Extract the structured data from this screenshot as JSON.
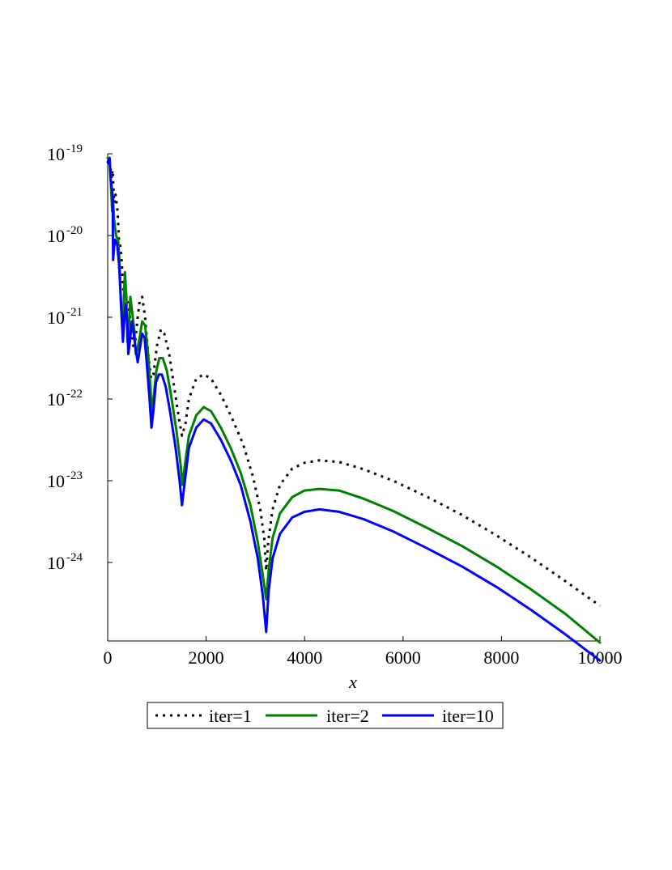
{
  "chart_data": {
    "type": "line",
    "title": "",
    "xlabel": "x",
    "ylabel": "",
    "xlim": [
      0,
      10000
    ],
    "ylim_log10": [
      -25.0,
      -19.0
    ],
    "yscale": "log",
    "grid": false,
    "legend_placement": "bottom",
    "x_ticks": [
      {
        "value": 0,
        "label": "0"
      },
      {
        "value": 2000,
        "label": "2000"
      },
      {
        "value": 4000,
        "label": "4000"
      },
      {
        "value": 6000,
        "label": "6000"
      },
      {
        "value": 8000,
        "label": "8000"
      },
      {
        "value": 10000,
        "label": "10000"
      }
    ],
    "y_ticks": [
      {
        "log10": -19,
        "base": "10",
        "exp": "-19"
      },
      {
        "log10": -20,
        "base": "10",
        "exp": "-20"
      },
      {
        "log10": -21,
        "base": "10",
        "exp": "-21"
      },
      {
        "log10": -22,
        "base": "10",
        "exp": "-22"
      },
      {
        "log10": -23,
        "base": "10",
        "exp": "-23"
      },
      {
        "log10": -24,
        "base": "10",
        "exp": "-24"
      }
    ],
    "series": [
      {
        "name": "iter=1",
        "color": "#000000",
        "style": "dotted",
        "points": [
          [
            0,
            -19.1
          ],
          [
            50,
            -19.15
          ],
          [
            80,
            -19.3
          ],
          [
            100,
            -19.2
          ],
          [
            130,
            -19.6
          ],
          [
            160,
            -19.5
          ],
          [
            200,
            -19.7
          ],
          [
            230,
            -20.05
          ],
          [
            260,
            -20.15
          ],
          [
            290,
            -20.35
          ],
          [
            310,
            -20.6
          ],
          [
            360,
            -20.85
          ],
          [
            400,
            -20.8
          ],
          [
            440,
            -20.95
          ],
          [
            480,
            -21.1
          ],
          [
            520,
            -21.35
          ],
          [
            560,
            -21.3
          ],
          [
            600,
            -21.05
          ],
          [
            650,
            -20.8
          ],
          [
            700,
            -20.75
          ],
          [
            760,
            -21.0
          ],
          [
            830,
            -21.5
          ],
          [
            880,
            -21.75
          ],
          [
            930,
            -21.7
          ],
          [
            1000,
            -21.35
          ],
          [
            1080,
            -21.15
          ],
          [
            1150,
            -21.2
          ],
          [
            1250,
            -21.45
          ],
          [
            1350,
            -21.85
          ],
          [
            1450,
            -22.25
          ],
          [
            1510,
            -22.45
          ],
          [
            1580,
            -22.3
          ],
          [
            1650,
            -22.0
          ],
          [
            1800,
            -21.75
          ],
          [
            1950,
            -21.7
          ],
          [
            2100,
            -21.75
          ],
          [
            2300,
            -21.95
          ],
          [
            2500,
            -22.2
          ],
          [
            2750,
            -22.55
          ],
          [
            2950,
            -22.95
          ],
          [
            3100,
            -23.35
          ],
          [
            3180,
            -23.7
          ],
          [
            3220,
            -24.1
          ],
          [
            3260,
            -23.75
          ],
          [
            3350,
            -23.35
          ],
          [
            3500,
            -23.05
          ],
          [
            3750,
            -22.85
          ],
          [
            4000,
            -22.78
          ],
          [
            4300,
            -22.75
          ],
          [
            4700,
            -22.77
          ],
          [
            5200,
            -22.86
          ],
          [
            5800,
            -23.0
          ],
          [
            6500,
            -23.2
          ],
          [
            7200,
            -23.42
          ],
          [
            7900,
            -23.67
          ],
          [
            8600,
            -23.94
          ],
          [
            9300,
            -24.23
          ],
          [
            10000,
            -24.53
          ]
        ]
      },
      {
        "name": "iter=2",
        "color": "#008000",
        "style": "solid",
        "points": [
          [
            0,
            -19.05
          ],
          [
            40,
            -19.1
          ],
          [
            60,
            -19.3
          ],
          [
            90,
            -19.7
          ],
          [
            110,
            -19.55
          ],
          [
            130,
            -19.8
          ],
          [
            170,
            -20.0
          ],
          [
            210,
            -20.05
          ],
          [
            240,
            -20.3
          ],
          [
            270,
            -20.85
          ],
          [
            300,
            -21.15
          ],
          [
            320,
            -20.9
          ],
          [
            350,
            -20.45
          ],
          [
            380,
            -20.75
          ],
          [
            400,
            -21.3
          ],
          [
            430,
            -21.15
          ],
          [
            460,
            -20.75
          ],
          [
            500,
            -20.95
          ],
          [
            540,
            -21.15
          ],
          [
            570,
            -21.45
          ],
          [
            600,
            -21.4
          ],
          [
            650,
            -21.25
          ],
          [
            700,
            -21.05
          ],
          [
            760,
            -21.1
          ],
          [
            820,
            -21.45
          ],
          [
            870,
            -21.85
          ],
          [
            900,
            -22.25
          ],
          [
            930,
            -22.0
          ],
          [
            990,
            -21.65
          ],
          [
            1050,
            -21.5
          ],
          [
            1120,
            -21.5
          ],
          [
            1200,
            -21.65
          ],
          [
            1300,
            -22.0
          ],
          [
            1400,
            -22.4
          ],
          [
            1480,
            -22.8
          ],
          [
            1520,
            -23.05
          ],
          [
            1560,
            -22.85
          ],
          [
            1650,
            -22.45
          ],
          [
            1800,
            -22.2
          ],
          [
            1950,
            -22.1
          ],
          [
            2100,
            -22.15
          ],
          [
            2300,
            -22.35
          ],
          [
            2500,
            -22.6
          ],
          [
            2700,
            -22.9
          ],
          [
            2900,
            -23.3
          ],
          [
            3050,
            -23.75
          ],
          [
            3150,
            -24.15
          ],
          [
            3220,
            -24.45
          ],
          [
            3270,
            -24.1
          ],
          [
            3350,
            -23.7
          ],
          [
            3500,
            -23.4
          ],
          [
            3750,
            -23.2
          ],
          [
            4000,
            -23.12
          ],
          [
            4300,
            -23.1
          ],
          [
            4700,
            -23.12
          ],
          [
            5200,
            -23.22
          ],
          [
            5800,
            -23.37
          ],
          [
            6500,
            -23.58
          ],
          [
            7200,
            -23.8
          ],
          [
            7900,
            -24.05
          ],
          [
            8600,
            -24.33
          ],
          [
            9300,
            -24.63
          ],
          [
            10000,
            -24.98
          ]
        ]
      },
      {
        "name": "iter=10",
        "color": "#0000ff",
        "style": "solid",
        "points": [
          [
            0,
            -19.1
          ],
          [
            40,
            -19.05
          ],
          [
            60,
            -19.3
          ],
          [
            100,
            -19.5
          ],
          [
            110,
            -20.3
          ],
          [
            130,
            -20.15
          ],
          [
            150,
            -20.05
          ],
          [
            190,
            -20.1
          ],
          [
            230,
            -20.35
          ],
          [
            270,
            -20.8
          ],
          [
            310,
            -21.3
          ],
          [
            340,
            -21.0
          ],
          [
            370,
            -20.85
          ],
          [
            400,
            -21.1
          ],
          [
            420,
            -21.45
          ],
          [
            450,
            -21.3
          ],
          [
            490,
            -21.05
          ],
          [
            530,
            -21.2
          ],
          [
            570,
            -21.4
          ],
          [
            610,
            -21.55
          ],
          [
            650,
            -21.4
          ],
          [
            700,
            -21.2
          ],
          [
            750,
            -21.25
          ],
          [
            800,
            -21.6
          ],
          [
            850,
            -22.0
          ],
          [
            890,
            -22.35
          ],
          [
            920,
            -22.2
          ],
          [
            980,
            -21.8
          ],
          [
            1040,
            -21.7
          ],
          [
            1100,
            -21.7
          ],
          [
            1180,
            -21.85
          ],
          [
            1280,
            -22.2
          ],
          [
            1380,
            -22.6
          ],
          [
            1460,
            -23.0
          ],
          [
            1510,
            -23.3
          ],
          [
            1560,
            -23.05
          ],
          [
            1650,
            -22.6
          ],
          [
            1800,
            -22.35
          ],
          [
            1950,
            -22.25
          ],
          [
            2100,
            -22.3
          ],
          [
            2300,
            -22.5
          ],
          [
            2500,
            -22.75
          ],
          [
            2700,
            -23.05
          ],
          [
            2900,
            -23.5
          ],
          [
            3050,
            -23.95
          ],
          [
            3150,
            -24.4
          ],
          [
            3220,
            -24.85
          ],
          [
            3270,
            -24.35
          ],
          [
            3350,
            -23.95
          ],
          [
            3500,
            -23.65
          ],
          [
            3750,
            -23.45
          ],
          [
            4000,
            -23.38
          ],
          [
            4300,
            -23.35
          ],
          [
            4700,
            -23.38
          ],
          [
            5200,
            -23.47
          ],
          [
            5800,
            -23.62
          ],
          [
            6500,
            -23.83
          ],
          [
            7200,
            -24.05
          ],
          [
            7900,
            -24.3
          ],
          [
            8600,
            -24.58
          ],
          [
            9300,
            -24.88
          ],
          [
            10000,
            -25.2
          ]
        ]
      }
    ]
  }
}
